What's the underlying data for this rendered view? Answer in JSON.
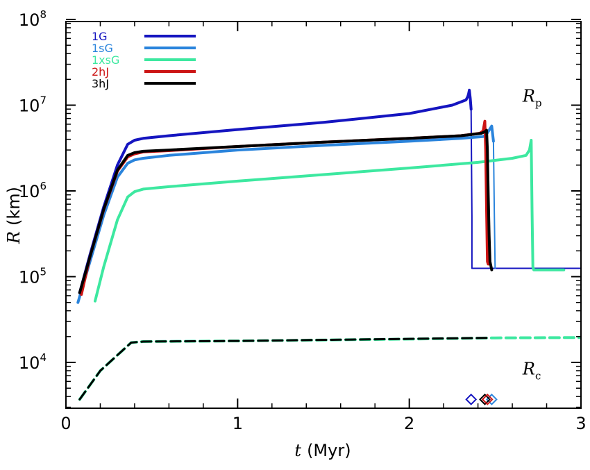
{
  "chart_data": {
    "type": "line",
    "title": "",
    "xlabel": {
      "symbol": "t",
      "unit": "(Myr)"
    },
    "ylabel": {
      "symbol": "R",
      "unit": "(km)"
    },
    "xscale": "linear",
    "yscale": "log",
    "xlim": [
      0,
      3
    ],
    "ylim": [
      3000,
      100000000
    ],
    "x_ticks": [
      {
        "value": 0,
        "label": "0"
      },
      {
        "value": 1,
        "label": "1"
      },
      {
        "value": 2,
        "label": "2"
      },
      {
        "value": 3,
        "label": "3"
      }
    ],
    "y_ticks": [
      {
        "value": 10000,
        "base": "10",
        "exp": "4"
      },
      {
        "value": 100000,
        "base": "10",
        "exp": "5"
      },
      {
        "value": 1000000,
        "base": "10",
        "exp": "6"
      },
      {
        "value": 10000000,
        "base": "10",
        "exp": "7"
      },
      {
        "value": 100000000,
        "base": "10",
        "exp": "8"
      }
    ],
    "legend_position": "top-left",
    "grid": false,
    "series": [
      {
        "name": "1G",
        "color": "#1515c0",
        "width": 4,
        "x": [
          0.08,
          0.14,
          0.22,
          0.3,
          0.36,
          0.4,
          0.45,
          0.6,
          1.0,
          1.5,
          2.0,
          2.25,
          2.33,
          2.34,
          2.345,
          2.35,
          2.355,
          2.36
        ],
        "y": [
          65000,
          180000,
          650000,
          2000000,
          3500000,
          3900000,
          4100000,
          4400000,
          5200000,
          6300000,
          8000000,
          10000000,
          11500000,
          12500000,
          13500000,
          15000000,
          12000000,
          9000000
        ]
      },
      {
        "name": "1G-drop",
        "legend": false,
        "color": "#1515c0",
        "width": 2,
        "x": [
          2.36,
          2.365,
          2.365,
          3.0
        ],
        "y": [
          9000000,
          500000,
          125000,
          125000
        ]
      },
      {
        "name": "1sG",
        "color": "#2a84dc",
        "width": 4,
        "x": [
          0.07,
          0.14,
          0.22,
          0.3,
          0.36,
          0.4,
          0.45,
          0.6,
          1.0,
          1.5,
          2.0,
          2.3,
          2.43,
          2.45,
          2.47,
          2.48,
          2.49
        ],
        "y": [
          50000,
          150000,
          520000,
          1450000,
          2100000,
          2300000,
          2400000,
          2600000,
          3000000,
          3400000,
          3800000,
          4100000,
          4300000,
          4600000,
          5300000,
          5700000,
          3800000
        ]
      },
      {
        "name": "1sG-drop",
        "legend": false,
        "color": "#2a84dc",
        "width": 2,
        "x": [
          2.49,
          2.495,
          2.5
        ],
        "y": [
          3800000,
          600000,
          125000
        ]
      },
      {
        "name": "1xsG",
        "color": "#3de8a0",
        "width": 4,
        "x": [
          0.17,
          0.22,
          0.3,
          0.36,
          0.4,
          0.45,
          0.6,
          1.0,
          1.5,
          2.0,
          2.4,
          2.6,
          2.68,
          2.7,
          2.71,
          2.715,
          2.72,
          2.725,
          2.73,
          2.9
        ],
        "y": [
          52000,
          130000,
          460000,
          850000,
          980000,
          1050000,
          1120000,
          1300000,
          1550000,
          1850000,
          2150000,
          2400000,
          2600000,
          3000000,
          3900000,
          600000,
          130000,
          120000,
          120000,
          120000
        ]
      },
      {
        "name": "2hJ",
        "color": "#cc1414",
        "width": 4,
        "x": [
          0.09,
          0.14,
          0.22,
          0.3,
          0.36,
          0.4,
          0.45,
          0.6,
          1.0,
          1.5,
          2.0,
          2.3,
          2.41,
          2.43,
          2.44,
          2.445,
          2.45,
          2.455,
          2.46
        ],
        "y": [
          62000,
          170000,
          600000,
          1700000,
          2500000,
          2700000,
          2850000,
          2950000,
          3300000,
          3700000,
          4100000,
          4400000,
          4700000,
          5000000,
          6500000,
          3000000,
          600000,
          150000,
          140000
        ]
      },
      {
        "name": "3hJ",
        "color": "#000000",
        "width": 4,
        "x": [
          0.08,
          0.14,
          0.22,
          0.3,
          0.36,
          0.4,
          0.45,
          0.6,
          1.0,
          1.5,
          2.0,
          2.3,
          2.42,
          2.44,
          2.45,
          2.455,
          2.46,
          2.465,
          2.47,
          2.48
        ],
        "y": [
          65000,
          170000,
          610000,
          1750000,
          2600000,
          2800000,
          2900000,
          3000000,
          3300000,
          3700000,
          4100000,
          4400000,
          4700000,
          4900000,
          5100000,
          3000000,
          900000,
          300000,
          150000,
          120000
        ]
      },
      {
        "name": "Rc-cyan",
        "legend": false,
        "color": "#3de8a0",
        "width": 4,
        "dash": "14,7",
        "x": [
          0.08,
          0.2,
          0.38,
          0.45,
          1.0,
          2.0,
          2.5,
          3.0
        ],
        "y": [
          3700.0,
          8000,
          17000,
          17500,
          17800,
          18700,
          19300,
          19500
        ]
      },
      {
        "name": "Rc-black",
        "legend": false,
        "color": "#000000",
        "width": 3,
        "dash": "14,7",
        "x": [
          0.08,
          0.2,
          0.38,
          0.45,
          1.0,
          2.0,
          2.45
        ],
        "y": [
          3700,
          8000,
          17000,
          17500,
          17800,
          18800,
          19300
        ]
      }
    ],
    "markers": [
      {
        "series": "1G",
        "x": 2.36,
        "y": 3700,
        "color": "#1515c0"
      },
      {
        "series": "1sG",
        "x": 2.48,
        "y": 3700,
        "color": "#2a84dc"
      },
      {
        "series": "3hJ",
        "x": 2.44,
        "y": 3700,
        "color": "#000000"
      },
      {
        "series": "2hJ",
        "x": 2.455,
        "y": 3700,
        "color": "#cc1414"
      }
    ],
    "annotations": [
      {
        "id": "rp",
        "symbol": "R",
        "sub": "p",
        "x": 2.66,
        "y": 11000000
      },
      {
        "id": "rc",
        "symbol": "R",
        "sub": "c",
        "x": 2.66,
        "y": 7200
      }
    ]
  }
}
